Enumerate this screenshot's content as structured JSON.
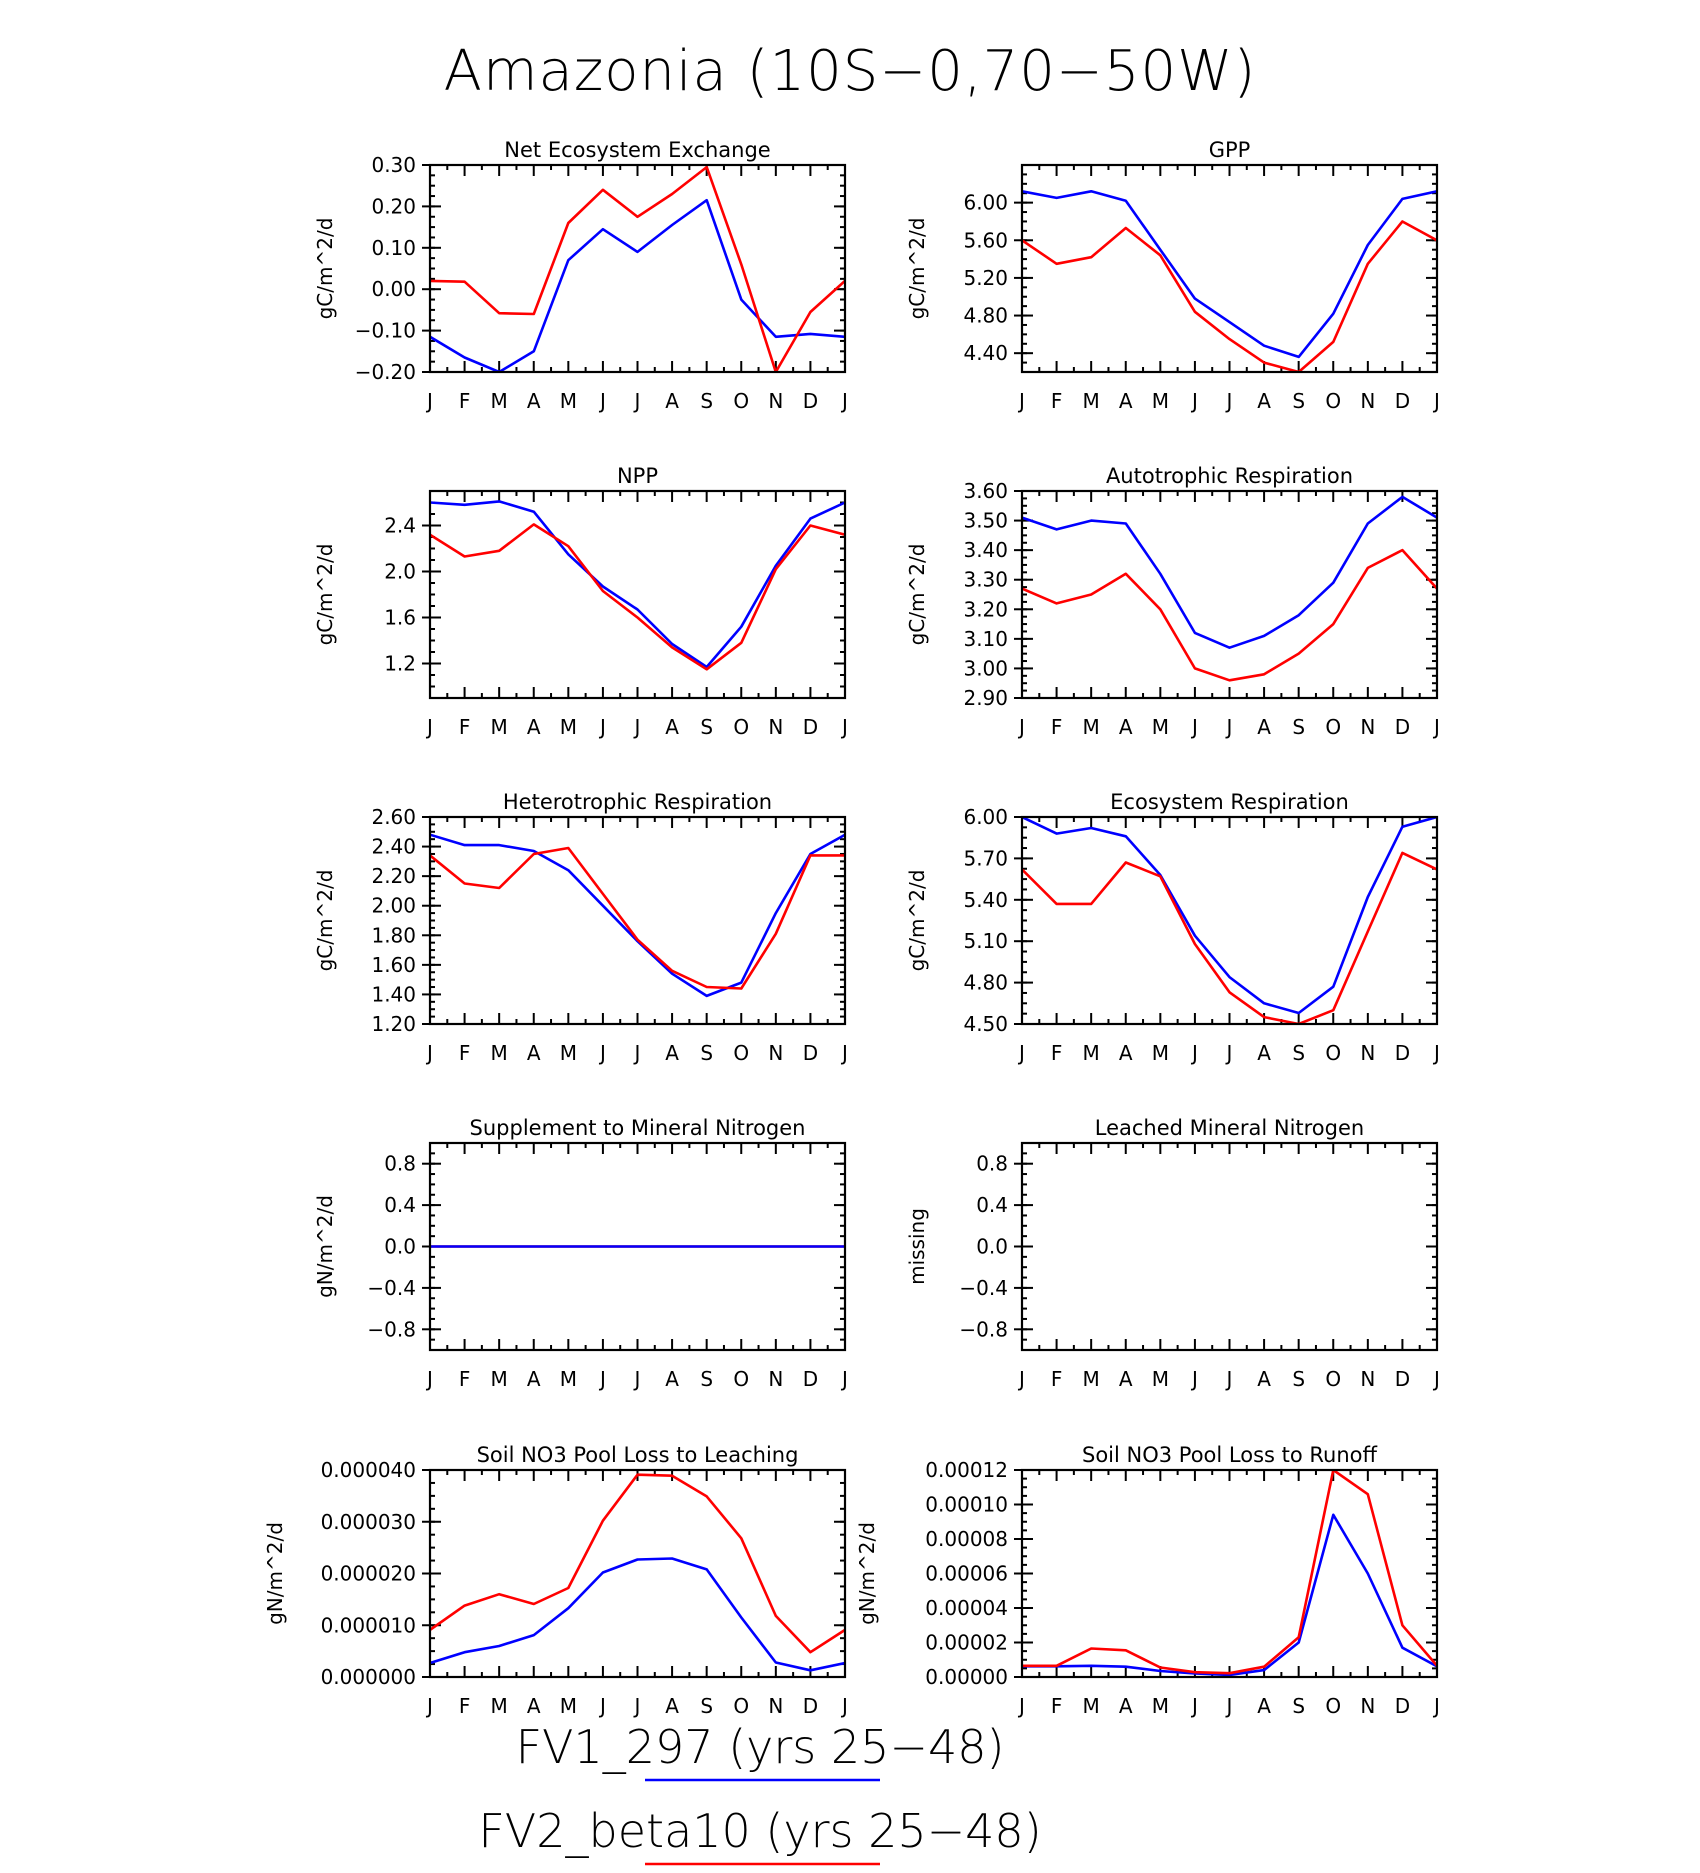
{
  "title": "Amazonia (10S-0,70-50W)",
  "legend": [
    {
      "label": "FV1_297 (yrs 25-48)",
      "color": "#0000ff"
    },
    {
      "label": "FV2_beta10 (yrs 25-48)",
      "color": "#ff0000"
    }
  ],
  "months": [
    "J",
    "F",
    "M",
    "A",
    "M",
    "J",
    "J",
    "A",
    "S",
    "O",
    "N",
    "D",
    "J"
  ],
  "chart_data": [
    {
      "type": "line",
      "title": "Net Ecosystem Exchange",
      "ylabel": "gC/m^2/d",
      "ylim": [
        -0.2,
        0.3
      ],
      "yticks": [
        -0.2,
        -0.1,
        0.0,
        0.1,
        0.2,
        0.3
      ],
      "ytick_labels": [
        "-0.20",
        "-0.10",
        "0.00",
        "0.10",
        "0.20",
        "0.30"
      ],
      "series": [
        {
          "color": "#0000ff",
          "values": [
            -0.115,
            -0.165,
            -0.2,
            -0.15,
            0.07,
            0.145,
            0.09,
            0.155,
            0.215,
            -0.025,
            -0.115,
            -0.108,
            -0.115
          ]
        },
        {
          "color": "#ff0000",
          "values": [
            0.02,
            0.018,
            -0.058,
            -0.06,
            0.16,
            0.24,
            0.175,
            0.23,
            0.295,
            0.06,
            -0.2,
            -0.055,
            0.02
          ]
        }
      ]
    },
    {
      "type": "line",
      "title": "GPP",
      "ylabel": "gC/m^2/d",
      "ylim": [
        4.2,
        6.4
      ],
      "yticks": [
        4.4,
        4.8,
        5.2,
        5.6,
        6.0
      ],
      "ytick_labels": [
        "4.40",
        "4.80",
        "5.20",
        "5.60",
        "6.00"
      ],
      "series": [
        {
          "color": "#0000ff",
          "values": [
            6.12,
            6.05,
            6.12,
            6.02,
            5.5,
            4.98,
            4.73,
            4.48,
            4.36,
            4.82,
            5.55,
            6.04,
            6.12
          ]
        },
        {
          "color": "#ff0000",
          "values": [
            5.6,
            5.35,
            5.42,
            5.73,
            5.44,
            4.84,
            4.55,
            4.3,
            4.2,
            4.52,
            5.35,
            5.8,
            5.6
          ]
        }
      ]
    },
    {
      "type": "line",
      "title": "NPP",
      "ylabel": "gC/m^2/d",
      "ylim": [
        0.9,
        2.7
      ],
      "yticks": [
        1.2,
        1.6,
        2.0,
        2.4
      ],
      "ytick_labels": [
        "1.2",
        "1.6",
        "2.0",
        "2.4"
      ],
      "series": [
        {
          "color": "#0000ff",
          "values": [
            2.6,
            2.58,
            2.61,
            2.52,
            2.15,
            1.87,
            1.67,
            1.37,
            1.17,
            1.52,
            2.05,
            2.46,
            2.6
          ]
        },
        {
          "color": "#ff0000",
          "values": [
            2.32,
            2.13,
            2.18,
            2.41,
            2.22,
            1.83,
            1.6,
            1.34,
            1.15,
            1.38,
            2.02,
            2.4,
            2.32
          ]
        }
      ]
    },
    {
      "type": "line",
      "title": "Autotrophic Respiration",
      "ylabel": "gC/m^2/d",
      "ylim": [
        2.9,
        3.6
      ],
      "yticks": [
        2.9,
        3.0,
        3.1,
        3.2,
        3.3,
        3.4,
        3.5,
        3.6
      ],
      "ytick_labels": [
        "2.90",
        "3.00",
        "3.10",
        "3.20",
        "3.30",
        "3.40",
        "3.50",
        "3.60"
      ],
      "series": [
        {
          "color": "#0000ff",
          "values": [
            3.51,
            3.47,
            3.5,
            3.49,
            3.32,
            3.12,
            3.07,
            3.11,
            3.18,
            3.29,
            3.49,
            3.58,
            3.51
          ]
        },
        {
          "color": "#ff0000",
          "values": [
            3.27,
            3.22,
            3.25,
            3.32,
            3.2,
            3.0,
            2.96,
            2.98,
            3.05,
            3.15,
            3.34,
            3.4,
            3.27
          ]
        }
      ]
    },
    {
      "type": "line",
      "title": "Heterotrophic Respiration",
      "ylabel": "gC/m^2/d",
      "ylim": [
        1.2,
        2.6
      ],
      "yticks": [
        1.2,
        1.4,
        1.6,
        1.8,
        2.0,
        2.2,
        2.4,
        2.6
      ],
      "ytick_labels": [
        "1.20",
        "1.40",
        "1.60",
        "1.80",
        "2.00",
        "2.20",
        "2.40",
        "2.60"
      ],
      "series": [
        {
          "color": "#0000ff",
          "values": [
            2.48,
            2.41,
            2.41,
            2.37,
            2.24,
            2.0,
            1.76,
            1.54,
            1.39,
            1.48,
            1.95,
            2.35,
            2.48
          ]
        },
        {
          "color": "#ff0000",
          "values": [
            2.34,
            2.15,
            2.12,
            2.35,
            2.39,
            2.08,
            1.77,
            1.56,
            1.45,
            1.44,
            1.81,
            2.34,
            2.34
          ]
        }
      ]
    },
    {
      "type": "line",
      "title": "Ecosystem Respiration",
      "ylabel": "gC/m^2/d",
      "ylim": [
        4.5,
        6.0
      ],
      "yticks": [
        4.5,
        4.8,
        5.1,
        5.4,
        5.7,
        6.0
      ],
      "ytick_labels": [
        "4.50",
        "4.80",
        "5.10",
        "5.40",
        "5.70",
        "6.00"
      ],
      "series": [
        {
          "color": "#0000ff",
          "values": [
            6.0,
            5.88,
            5.92,
            5.86,
            5.58,
            5.14,
            4.84,
            4.65,
            4.58,
            4.77,
            5.42,
            5.93,
            6.0
          ]
        },
        {
          "color": "#ff0000",
          "values": [
            5.62,
            5.37,
            5.37,
            5.67,
            5.57,
            5.08,
            4.73,
            4.55,
            4.5,
            4.6,
            5.17,
            5.74,
            5.62
          ]
        }
      ]
    },
    {
      "type": "line",
      "title": "Supplement to Mineral Nitrogen",
      "ylabel": "gN/m^2/d",
      "ylim": [
        -1.0,
        1.0
      ],
      "yticks": [
        -0.8,
        -0.4,
        0.0,
        0.4,
        0.8
      ],
      "ytick_labels": [
        "-0.8",
        "-0.4",
        "0.0",
        "0.4",
        "0.8"
      ],
      "series": [
        {
          "color": "#ff0000",
          "values": [
            0,
            0,
            0,
            0,
            0,
            0,
            0,
            0,
            0,
            0,
            0,
            0,
            0
          ]
        },
        {
          "color": "#0000ff",
          "values": [
            0,
            0,
            0,
            0,
            0,
            0,
            0,
            0,
            0,
            0,
            0,
            0,
            0
          ]
        }
      ]
    },
    {
      "type": "line",
      "title": "Leached Mineral Nitrogen",
      "ylabel": "missing",
      "ylim": [
        -1.0,
        1.0
      ],
      "yticks": [
        -0.8,
        -0.4,
        0.0,
        0.4,
        0.8
      ],
      "ytick_labels": [
        "-0.8",
        "-0.4",
        "0.0",
        "0.4",
        "0.8"
      ],
      "series": []
    },
    {
      "type": "line",
      "title": "Soil NO3 Pool Loss to Leaching",
      "ylabel": "gN/m^2/d",
      "ylim": [
        0,
        4e-05
      ],
      "yticks": [
        0,
        1e-05,
        2e-05,
        3e-05,
        4e-05
      ],
      "ytick_labels": [
        "0.000000",
        "0.000010",
        "0.000020",
        "0.000030",
        "0.000040"
      ],
      "series": [
        {
          "color": "#0000ff",
          "values": [
            2.7e-06,
            4.8e-06,
            6e-06,
            8.1e-06,
            1.33e-05,
            2.02e-05,
            2.27e-05,
            2.29e-05,
            2.08e-05,
            1.15e-05,
            2.8e-06,
            1.3e-06,
            2.7e-06
          ]
        },
        {
          "color": "#ff0000",
          "values": [
            9.1e-06,
            1.38e-05,
            1.6e-05,
            1.41e-05,
            1.72e-05,
            3.02e-05,
            3.91e-05,
            3.89e-05,
            3.49e-05,
            2.68e-05,
            1.18e-05,
            4.8e-06,
            9.1e-06
          ]
        }
      ]
    },
    {
      "type": "line",
      "title": "Soil NO3 Pool Loss to Runoff",
      "ylabel": "gN/m^2/d",
      "ylim": [
        0,
        0.00012
      ],
      "yticks": [
        0,
        2e-05,
        4e-05,
        6e-05,
        8e-05,
        0.0001,
        0.00012
      ],
      "ytick_labels": [
        "0.00000",
        "0.00002",
        "0.00004",
        "0.00006",
        "0.00008",
        "0.00010",
        "0.00012"
      ],
      "series": [
        {
          "color": "#0000ff",
          "values": [
            6.2e-06,
            6.2e-06,
            6.5e-06,
            6e-06,
            3.5e-06,
            2e-06,
            1.2e-06,
            4e-06,
            2e-05,
            9.4e-05,
            6e-05,
            1.7e-05,
            6.2e-06
          ]
        },
        {
          "color": "#ff0000",
          "values": [
            6.5e-06,
            6.5e-06,
            1.65e-05,
            1.55e-05,
            5.5e-06,
            2.8e-06,
            2.2e-06,
            6e-06,
            2.3e-05,
            0.00012,
            0.000106,
            3e-05,
            6.5e-06
          ]
        }
      ]
    }
  ]
}
